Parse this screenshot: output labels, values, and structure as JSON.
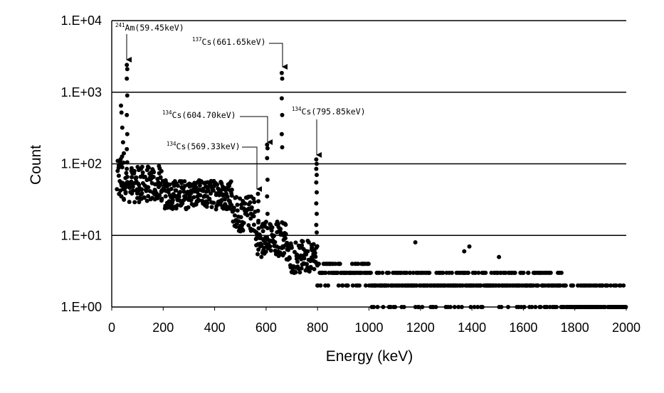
{
  "chart_data": {
    "type": "scatter",
    "title": "",
    "xlabel": "Energy (keV)",
    "ylabel": "Count",
    "x_range": [
      0,
      2000
    ],
    "y_range": [
      1,
      10000
    ],
    "y_scale": "log",
    "x_ticks": [
      "0",
      "200",
      "400",
      "600",
      "800",
      "1000",
      "1200",
      "1400",
      "1600",
      "1800",
      "2000"
    ],
    "y_ticks": [
      "1.E+00",
      "1.E+01",
      "1.E+02",
      "1.E+03",
      "1.E+04"
    ],
    "grid": "horizontal major gridlines at each decade",
    "marker_color": "#000000",
    "annotations": [
      {
        "isotope_sup": "241",
        "isotope": "Am",
        "energy_text": "(59.45keV)",
        "x": 59.45,
        "y": 2400
      },
      {
        "isotope_sup": "137",
        "isotope": "Cs",
        "energy_text": "(661.65keV)",
        "x": 661.65,
        "y": 1850
      },
      {
        "isotope_sup": "134",
        "isotope": "Cs",
        "energy_text": "(604.70keV)",
        "x": 604.7,
        "y": 185
      },
      {
        "isotope_sup": "134",
        "isotope": "Cs",
        "energy_text": "(795.85keV)",
        "x": 795.85,
        "y": 115
      },
      {
        "isotope_sup": "134",
        "isotope": "Cs",
        "energy_text": "(569.33keV)",
        "x": 569.33,
        "y": 38
      }
    ],
    "peaks": [
      {
        "x": 59.45,
        "values": [
          2400,
          2100,
          1550,
          900,
          480,
          260,
          160,
          105,
          85
        ]
      },
      {
        "x": 661.65,
        "values": [
          1850,
          1550,
          820,
          480,
          260,
          170
        ]
      },
      {
        "x": 604.7,
        "values": [
          185,
          165,
          120,
          60,
          35,
          20
        ]
      },
      {
        "x": 795.85,
        "values": [
          115,
          100,
          85,
          70,
          55,
          40,
          28,
          20,
          14,
          11
        ]
      },
      {
        "x": 569.33,
        "values": [
          38,
          30,
          22,
          16
        ]
      }
    ],
    "continuum": [
      {
        "x": [
          20,
          50
        ],
        "level": 60,
        "spread": 2.2
      },
      {
        "x": [
          50,
          200
        ],
        "level": 52,
        "spread": 1.8
      },
      {
        "x": [
          200,
          470
        ],
        "level": 37,
        "spread": 1.6
      },
      {
        "x": [
          470,
          560
        ],
        "level": 20,
        "spread": 1.8
      },
      {
        "x": [
          560,
          680
        ],
        "level": 9,
        "spread": 1.8
      },
      {
        "x": [
          680,
          800
        ],
        "level": 5,
        "spread": 1.7
      },
      {
        "x": [
          800,
          1000
        ],
        "level": 3,
        "spread": 2.0
      },
      {
        "x": [
          1000,
          1400
        ],
        "level": 2,
        "spread": 2.5
      },
      {
        "x": [
          1400,
          1750
        ],
        "level": 2,
        "spread": 2.0
      },
      {
        "x": [
          1750,
          2000
        ],
        "level": 1,
        "spread": 1.5
      }
    ],
    "outliers": [
      {
        "x": 36,
        "y": 650
      },
      {
        "x": 38,
        "y": 520
      },
      {
        "x": 41,
        "y": 320
      },
      {
        "x": 44,
        "y": 200
      },
      {
        "x": 47,
        "y": 140
      },
      {
        "x": 1180,
        "y": 8
      },
      {
        "x": 1390,
        "y": 7
      },
      {
        "x": 1370,
        "y": 6
      },
      {
        "x": 1505,
        "y": 5
      },
      {
        "x": 1900,
        "y": 2
      },
      {
        "x": 1960,
        "y": 2
      }
    ]
  }
}
